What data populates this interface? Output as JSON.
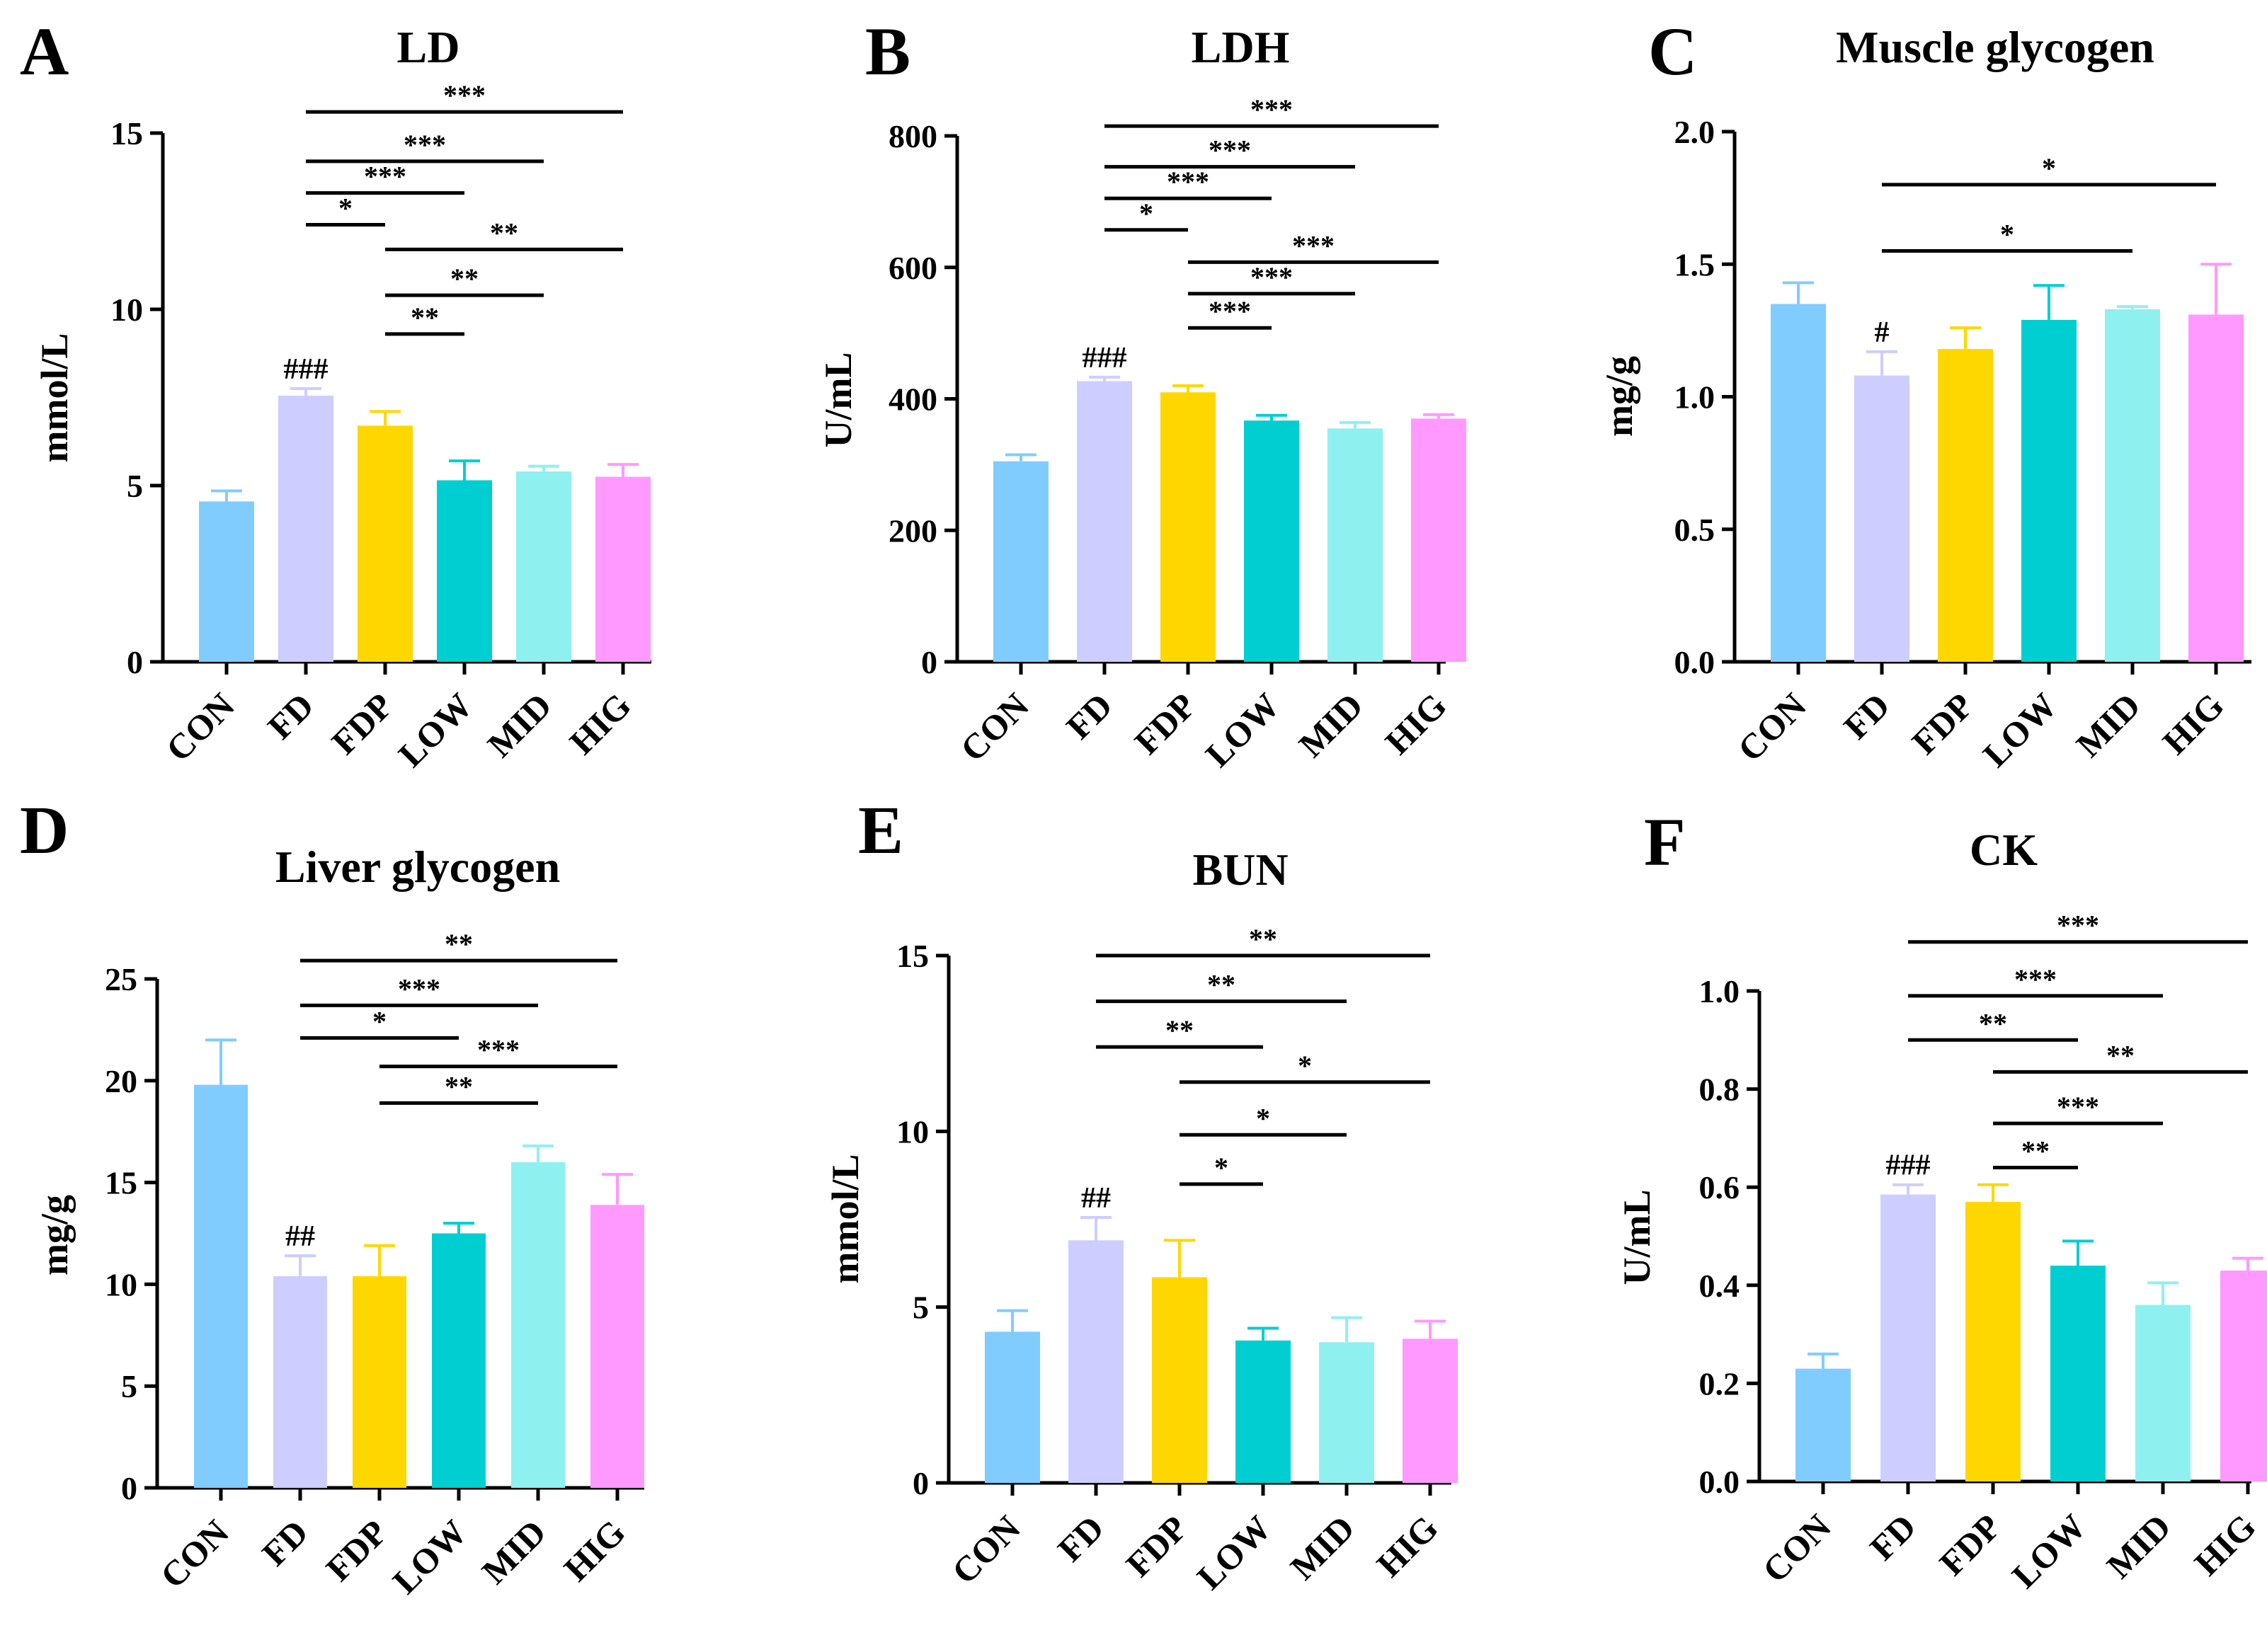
{
  "chart_data": [
    {
      "type": "bar",
      "panel": "A",
      "title": "LD",
      "ylabel": "mmol/L",
      "ylim": [
        0,
        15
      ],
      "yticks": [
        "0",
        "5",
        "10",
        "15"
      ],
      "tick_values": [
        0,
        5,
        10,
        15
      ],
      "categories": [
        "CON",
        "FD",
        "FDP",
        "LOW",
        "MID",
        "HIG"
      ],
      "values": [
        4.55,
        7.55,
        6.7,
        5.15,
        5.4,
        5.25
      ],
      "errors": [
        0.3,
        0.2,
        0.4,
        0.55,
        0.15,
        0.35
      ],
      "model_marker": {
        "category": "FD",
        "text": "###"
      },
      "significance": [
        {
          "from": "FD",
          "to": "HIG",
          "level": 15.6,
          "text": "***"
        },
        {
          "from": "FD",
          "to": "MID",
          "level": 14.2,
          "text": "***"
        },
        {
          "from": "FD",
          "to": "LOW",
          "level": 13.3,
          "text": "***"
        },
        {
          "from": "FD",
          "to": "FDP",
          "level": 12.4,
          "text": "*"
        },
        {
          "from": "FDP",
          "to": "HIG",
          "level": 11.7,
          "text": "**"
        },
        {
          "from": "FDP",
          "to": "MID",
          "level": 10.4,
          "text": "**"
        },
        {
          "from": "FDP",
          "to": "LOW",
          "level": 9.3,
          "text": "**"
        }
      ]
    },
    {
      "type": "bar",
      "panel": "B",
      "title": "LDH",
      "ylabel": "U/mL",
      "ylim": [
        0,
        800
      ],
      "yticks": [
        "0",
        "200",
        "400",
        "600",
        "800"
      ],
      "tick_values": [
        0,
        200,
        400,
        600,
        800
      ],
      "categories": [
        "CON",
        "FD",
        "FDP",
        "LOW",
        "MID",
        "HIG"
      ],
      "values": [
        305,
        427,
        410,
        367,
        355,
        370
      ],
      "errors": [
        10,
        6,
        10,
        8,
        9,
        6
      ],
      "model_marker": {
        "category": "FD",
        "text": "###"
      },
      "significance": [
        {
          "from": "FD",
          "to": "HIG",
          "level": 815,
          "text": "***"
        },
        {
          "from": "FD",
          "to": "MID",
          "level": 753,
          "text": "***"
        },
        {
          "from": "FD",
          "to": "LOW",
          "level": 705,
          "text": "***"
        },
        {
          "from": "FD",
          "to": "FDP",
          "level": 657,
          "text": "*"
        },
        {
          "from": "FDP",
          "to": "HIG",
          "level": 608,
          "text": "***"
        },
        {
          "from": "FDP",
          "to": "MID",
          "level": 560,
          "text": "***"
        },
        {
          "from": "FDP",
          "to": "LOW",
          "level": 508,
          "text": "***"
        }
      ]
    },
    {
      "type": "bar",
      "panel": "C",
      "title": "Muscle glycogen",
      "ylabel": "mg/g",
      "ylim": [
        0,
        2.0
      ],
      "yticks": [
        "0.0",
        "0.5",
        "1.0",
        "1.5",
        "2.0"
      ],
      "tick_values": [
        0,
        0.5,
        1.0,
        1.5,
        2.0
      ],
      "categories": [
        "CON",
        "FD",
        "FDP",
        "LOW",
        "MID",
        "HIG"
      ],
      "values": [
        1.35,
        1.08,
        1.18,
        1.29,
        1.33,
        1.31
      ],
      "errors": [
        0.08,
        0.09,
        0.08,
        0.13,
        0.01,
        0.19
      ],
      "model_marker": {
        "category": "FD",
        "text": "#"
      },
      "significance": [
        {
          "from": "FD",
          "to": "HIG",
          "level": 1.8,
          "text": "*"
        },
        {
          "from": "FD",
          "to": "MID",
          "level": 1.55,
          "text": "*"
        }
      ]
    },
    {
      "type": "bar",
      "panel": "D",
      "title": "Liver glycogen",
      "ylabel": "mg/g",
      "ylim": [
        0,
        25
      ],
      "yticks": [
        "0",
        "5",
        "10",
        "15",
        "20",
        "25"
      ],
      "tick_values": [
        0,
        5,
        10,
        15,
        20,
        25
      ],
      "categories": [
        "CON",
        "FD",
        "FDP",
        "LOW",
        "MID",
        "HIG"
      ],
      "values": [
        19.8,
        10.4,
        10.4,
        12.5,
        16.0,
        13.9
      ],
      "errors": [
        2.2,
        1.0,
        1.5,
        0.5,
        0.8,
        1.5
      ],
      "model_marker": {
        "category": "FD",
        "text": "##"
      },
      "significance": [
        {
          "from": "FD",
          "to": "HIG",
          "level": 25.9,
          "text": "**"
        },
        {
          "from": "FD",
          "to": "MID",
          "level": 23.7,
          "text": "***"
        },
        {
          "from": "FD",
          "to": "LOW",
          "level": 22.1,
          "text": "*"
        },
        {
          "from": "FDP",
          "to": "HIG",
          "level": 20.7,
          "text": "***"
        },
        {
          "from": "FDP",
          "to": "MID",
          "level": 18.9,
          "text": "**"
        }
      ]
    },
    {
      "type": "bar",
      "panel": "E",
      "title": "BUN",
      "ylabel": "mmol/L",
      "ylim": [
        0,
        15
      ],
      "yticks": [
        "0",
        "5",
        "10",
        "15"
      ],
      "tick_values": [
        0,
        5,
        10,
        15
      ],
      "categories": [
        "CON",
        "FD",
        "FDP",
        "LOW",
        "MID",
        "HIG"
      ],
      "values": [
        4.3,
        6.9,
        5.85,
        4.05,
        4.0,
        4.1
      ],
      "errors": [
        0.6,
        0.65,
        1.05,
        0.35,
        0.7,
        0.5
      ],
      "model_marker": {
        "category": "FD",
        "text": "##"
      },
      "significance": [
        {
          "from": "FD",
          "to": "HIG",
          "level": 15.0,
          "text": "**"
        },
        {
          "from": "FD",
          "to": "MID",
          "level": 13.7,
          "text": "**"
        },
        {
          "from": "FD",
          "to": "LOW",
          "level": 12.4,
          "text": "**"
        },
        {
          "from": "FDP",
          "to": "HIG",
          "level": 11.4,
          "text": "*"
        },
        {
          "from": "FDP",
          "to": "MID",
          "level": 9.9,
          "text": "*"
        },
        {
          "from": "FDP",
          "to": "LOW",
          "level": 8.5,
          "text": "*"
        }
      ]
    },
    {
      "type": "bar",
      "panel": "F",
      "title": "CK",
      "ylabel": "U/mL",
      "ylim": [
        0,
        1.0
      ],
      "yticks": [
        "0.0",
        "0.2",
        "0.4",
        "0.6",
        "0.8",
        "1.0"
      ],
      "tick_values": [
        0,
        0.2,
        0.4,
        0.6,
        0.8,
        1.0
      ],
      "categories": [
        "CON",
        "FD",
        "FDP",
        "LOW",
        "MID",
        "HIG"
      ],
      "values": [
        0.23,
        0.585,
        0.57,
        0.44,
        0.36,
        0.43
      ],
      "errors": [
        0.03,
        0.02,
        0.035,
        0.05,
        0.045,
        0.025
      ],
      "model_marker": {
        "category": "FD",
        "text": "###"
      },
      "significance": [
        {
          "from": "FD",
          "to": "HIG",
          "level": 1.1,
          "text": "***"
        },
        {
          "from": "FD",
          "to": "MID",
          "level": 0.99,
          "text": "***"
        },
        {
          "from": "FD",
          "to": "LOW",
          "level": 0.9,
          "text": "**"
        },
        {
          "from": "FDP",
          "to": "HIG",
          "level": 0.835,
          "text": "**"
        },
        {
          "from": "FDP",
          "to": "MID",
          "level": 0.73,
          "text": "***"
        },
        {
          "from": "FDP",
          "to": "LOW",
          "level": 0.64,
          "text": "**"
        }
      ]
    }
  ],
  "colors": {
    "CON": "#80CCFF",
    "FD": "#CDCDFF",
    "FDP": "#FFD700",
    "LOW": "#00CED1",
    "MID": "#8FF0F0",
    "HIG": "#FF99FF",
    "axis": "#000000"
  }
}
